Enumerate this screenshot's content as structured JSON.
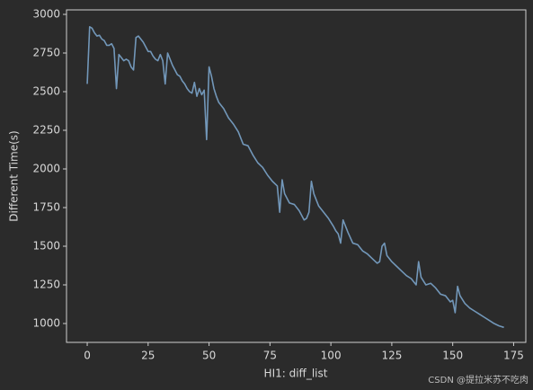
{
  "chart_data": {
    "type": "line",
    "x_label": "HI1: diff_list",
    "y_label": "Different Time(s)",
    "watermark": "CSDN @提拉米苏不吃肉",
    "x": [
      0,
      1,
      2,
      3,
      4,
      5,
      6,
      7,
      8,
      9,
      10,
      11,
      12,
      13,
      14,
      15,
      16,
      17,
      18,
      19,
      20,
      21,
      22,
      23,
      24,
      25,
      26,
      27,
      28,
      29,
      30,
      31,
      32,
      33,
      34,
      35,
      36,
      37,
      38,
      39,
      40,
      41,
      42,
      43,
      44,
      45,
      46,
      47,
      48,
      49,
      50,
      51,
      52,
      53,
      54,
      56,
      58,
      60,
      62,
      64,
      66,
      68,
      70,
      72,
      74,
      76,
      78,
      79,
      80,
      81,
      83,
      85,
      87,
      88,
      89,
      90,
      91,
      92,
      93,
      95,
      97,
      99,
      101,
      102,
      103,
      104,
      105,
      107,
      109,
      111,
      113,
      115,
      117,
      119,
      120,
      121,
      122,
      123,
      125,
      127,
      129,
      131,
      133,
      134,
      135,
      136,
      137,
      139,
      141,
      143,
      145,
      147,
      149,
      150,
      151,
      152,
      153,
      155,
      157,
      159,
      161,
      163,
      165,
      167,
      169,
      171
    ],
    "series": [
      {
        "color": "#7297b9",
        "values": [
          2550,
          2920,
          2910,
          2880,
          2860,
          2865,
          2840,
          2830,
          2800,
          2800,
          2810,
          2780,
          2520,
          2740,
          2720,
          2700,
          2710,
          2700,
          2660,
          2640,
          2850,
          2860,
          2840,
          2820,
          2790,
          2760,
          2760,
          2730,
          2710,
          2700,
          2740,
          2700,
          2550,
          2750,
          2710,
          2670,
          2640,
          2610,
          2600,
          2570,
          2550,
          2520,
          2500,
          2490,
          2560,
          2470,
          2520,
          2480,
          2510,
          2190,
          2660,
          2600,
          2520,
          2470,
          2430,
          2390,
          2330,
          2290,
          2240,
          2160,
          2150,
          2090,
          2040,
          2010,
          1960,
          1920,
          1890,
          1720,
          1930,
          1840,
          1780,
          1770,
          1730,
          1700,
          1670,
          1680,
          1720,
          1920,
          1840,
          1760,
          1720,
          1680,
          1630,
          1600,
          1580,
          1520,
          1670,
          1590,
          1520,
          1510,
          1470,
          1450,
          1420,
          1390,
          1400,
          1500,
          1520,
          1440,
          1400,
          1370,
          1340,
          1310,
          1290,
          1270,
          1250,
          1400,
          1300,
          1250,
          1260,
          1230,
          1190,
          1180,
          1140,
          1150,
          1070,
          1240,
          1180,
          1130,
          1100,
          1080,
          1060,
          1040,
          1020,
          1000,
          985,
          975
        ]
      }
    ],
    "xlim": [
      -8.5,
      180
    ],
    "ylim": [
      878,
      3029
    ],
    "xticks": [
      0,
      25,
      50,
      75,
      100,
      125,
      150,
      175
    ],
    "yticks": [
      1000,
      1250,
      1500,
      1750,
      2000,
      2250,
      2500,
      2750,
      3000
    ]
  }
}
